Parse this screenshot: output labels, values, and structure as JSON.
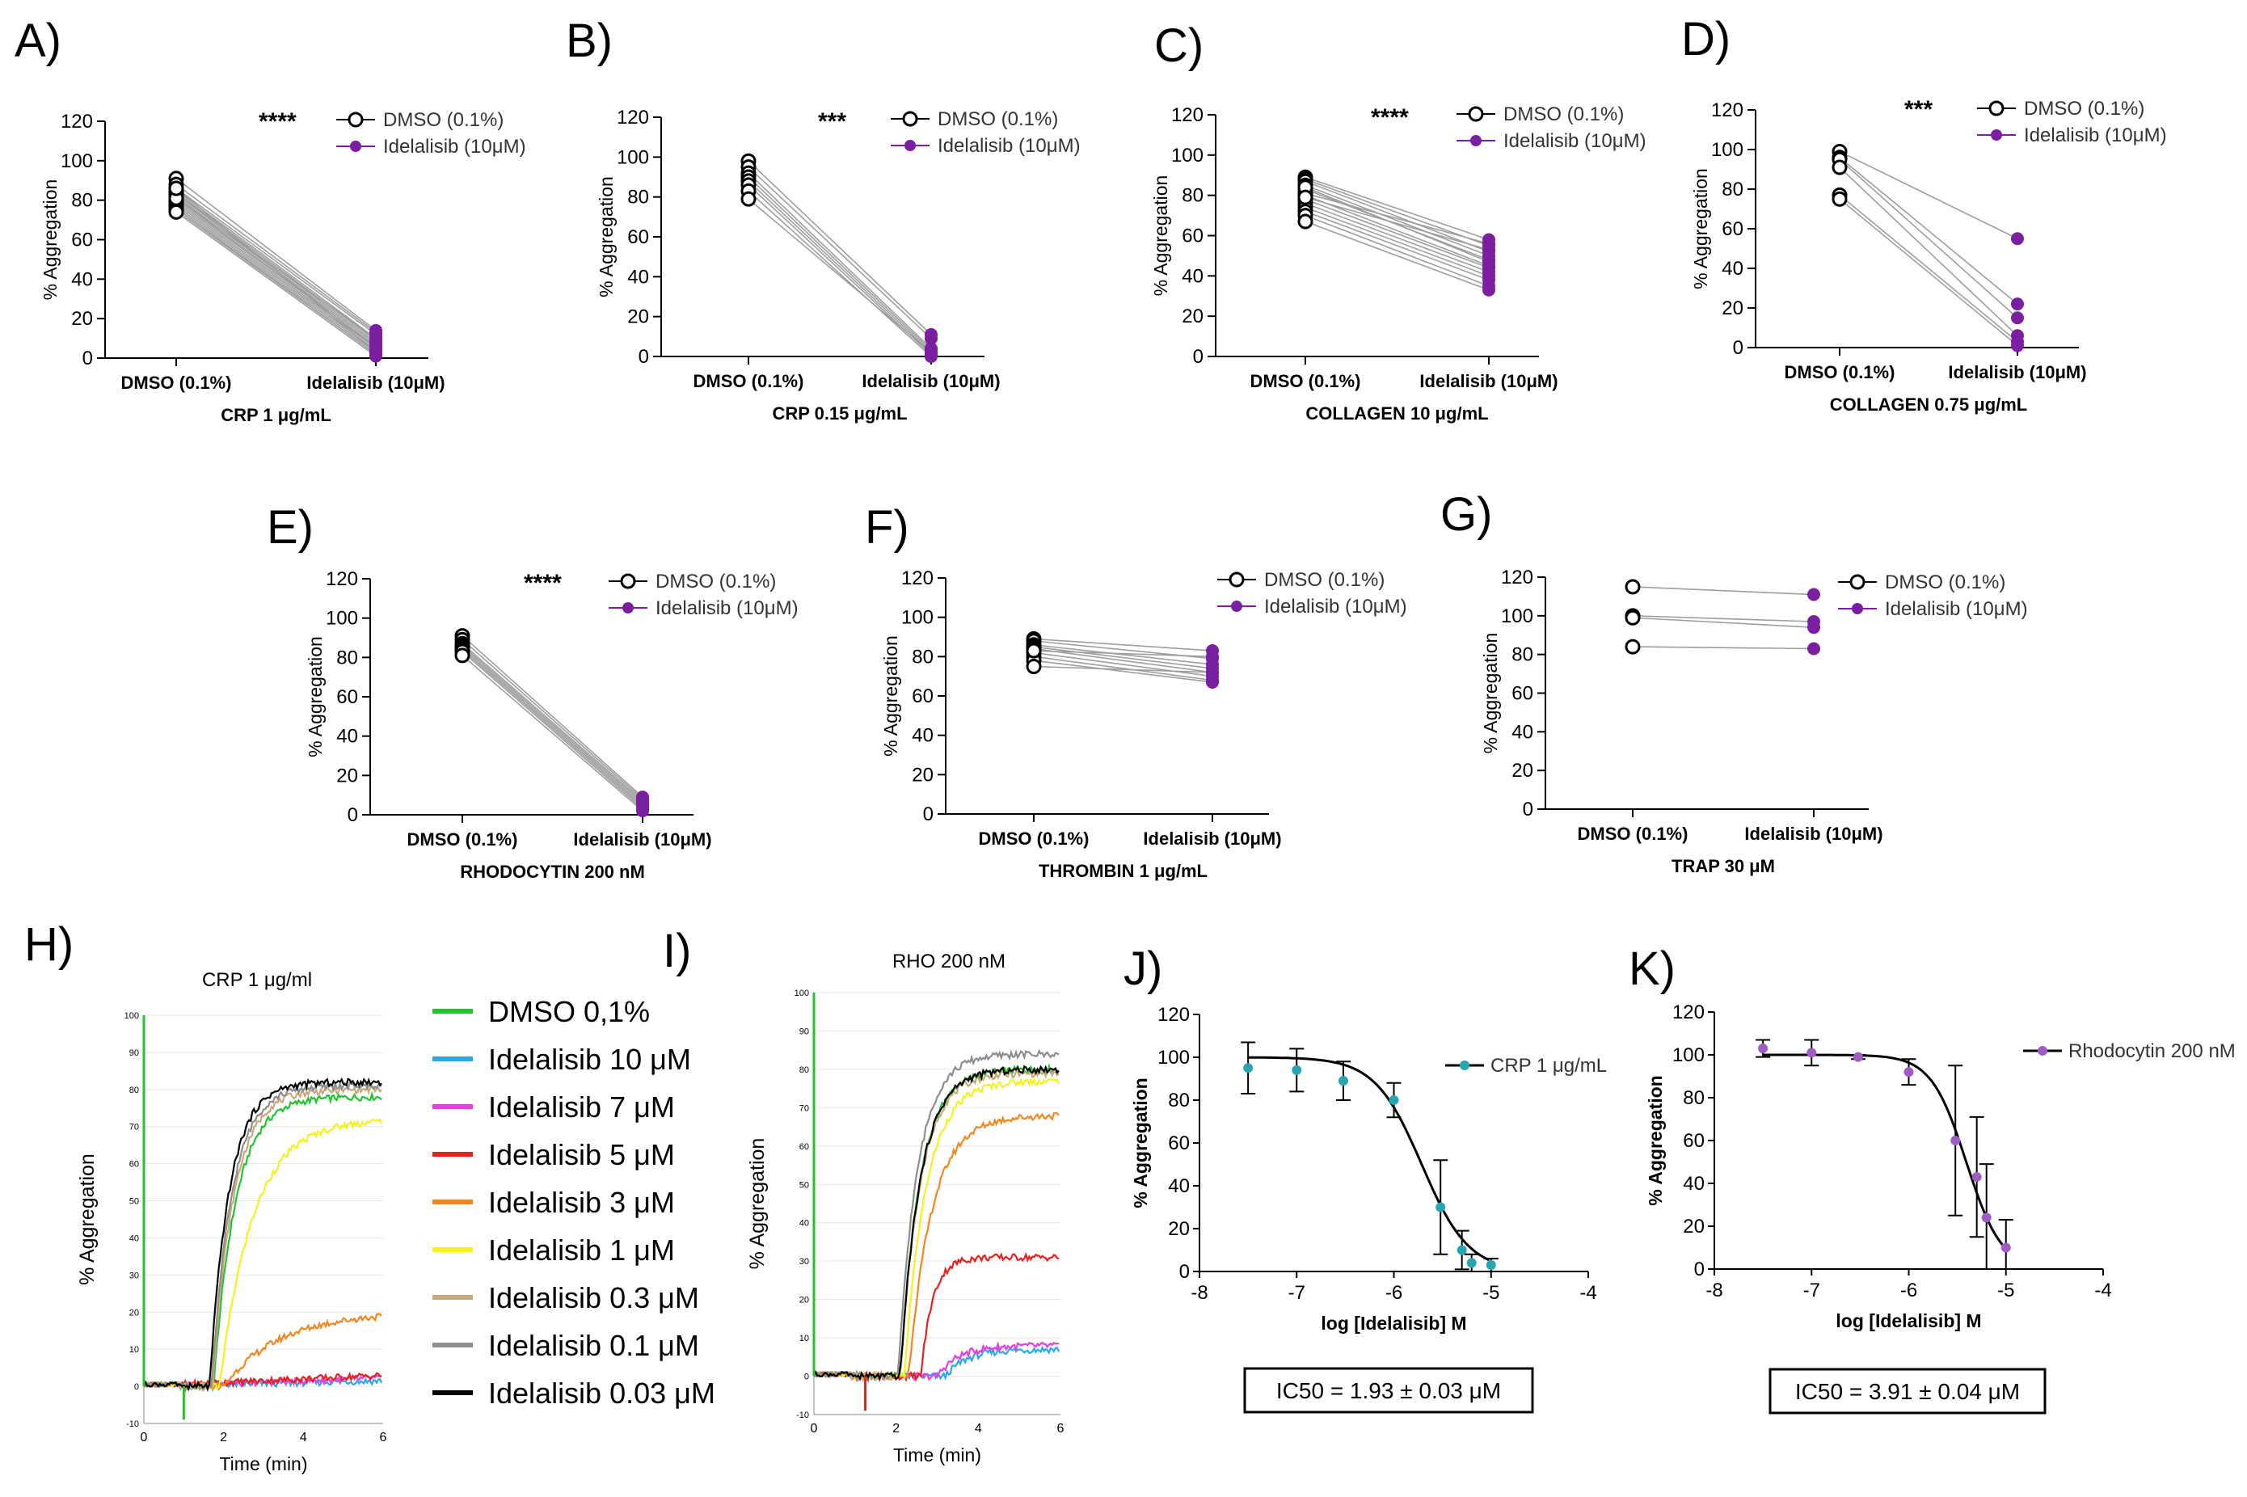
{
  "figure_labels": {
    "A": "A)",
    "B": "B)",
    "C": "C)",
    "D": "D)",
    "E": "E)",
    "F": "F)",
    "G": "G)",
    "H": "H)",
    "I": "I)",
    "J": "J)",
    "K": "K)"
  },
  "colors": {
    "dmso_marker": "#000000",
    "idelalisib_marker": "#7b1fa2",
    "pair_line": "#9e9e9e",
    "fit_marker": "#26a6b0",
    "rho_marker": "#a05cc6"
  },
  "chart_data": [
    {
      "id": "A",
      "type": "scatter",
      "title": "",
      "categories": [
        "DMSO (0.1%)",
        "Idelalisib (10μM)"
      ],
      "xlabel": "CRP 1 μg/mL",
      "ylabel": "% Aggregation",
      "ylim": [
        0,
        120
      ],
      "yticks": [
        0,
        20,
        40,
        60,
        80,
        100,
        120
      ],
      "significance": "****",
      "legend": [
        "DMSO (0.1%)",
        "Idelalisib (10μM)"
      ],
      "pairs": [
        [
          91,
          14
        ],
        [
          88,
          13
        ],
        [
          86,
          12
        ],
        [
          85,
          10
        ],
        [
          84,
          9
        ],
        [
          83,
          8
        ],
        [
          82,
          7
        ],
        [
          81,
          6
        ],
        [
          80,
          6
        ],
        [
          79,
          5
        ],
        [
          78,
          4
        ],
        [
          77,
          3
        ],
        [
          76,
          2
        ],
        [
          75,
          2
        ],
        [
          74,
          1
        ],
        [
          84,
          5
        ],
        [
          81,
          10
        ],
        [
          86,
          3
        ]
      ]
    },
    {
      "id": "B",
      "type": "scatter",
      "title": "",
      "categories": [
        "DMSO (0.1%)",
        "Idelalisib (10μM)"
      ],
      "xlabel": "CRP 0.15 μg/mL",
      "ylabel": "% Aggregation",
      "ylim": [
        0,
        120
      ],
      "yticks": [
        0,
        20,
        40,
        60,
        80,
        100,
        120
      ],
      "significance": "***",
      "legend": [
        "DMSO (0.1%)",
        "Idelalisib (10μM)"
      ],
      "pairs": [
        [
          98,
          11
        ],
        [
          95,
          9
        ],
        [
          92,
          4
        ],
        [
          90,
          3
        ],
        [
          88,
          2
        ],
        [
          86,
          1
        ],
        [
          83,
          0
        ],
        [
          79,
          2
        ]
      ]
    },
    {
      "id": "C",
      "type": "scatter",
      "title": "",
      "categories": [
        "DMSO (0.1%)",
        "Idelalisib (10μM)"
      ],
      "xlabel": "COLLAGEN 10 μg/mL",
      "ylabel": "% Aggregation",
      "ylim": [
        0,
        120
      ],
      "yticks": [
        0,
        20,
        40,
        60,
        80,
        100,
        120
      ],
      "significance": "****",
      "legend": [
        "DMSO (0.1%)",
        "Idelalisib (10μM)"
      ],
      "pairs": [
        [
          89,
          58
        ],
        [
          88,
          55
        ],
        [
          87,
          52
        ],
        [
          85,
          50
        ],
        [
          83,
          48
        ],
        [
          81,
          56
        ],
        [
          80,
          45
        ],
        [
          78,
          44
        ],
        [
          76,
          42
        ],
        [
          74,
          40
        ],
        [
          72,
          38
        ],
        [
          70,
          35
        ],
        [
          67,
          33
        ],
        [
          84,
          47
        ],
        [
          79,
          53
        ]
      ]
    },
    {
      "id": "D",
      "type": "scatter",
      "title": "",
      "categories": [
        "DMSO (0.1%)",
        "Idelalisib (10μM)"
      ],
      "xlabel": "COLLAGEN 0.75 μg/mL",
      "ylabel": "% Aggregation",
      "ylim": [
        0,
        120
      ],
      "yticks": [
        0,
        20,
        40,
        60,
        80,
        100,
        120
      ],
      "significance": "***",
      "legend": [
        "DMSO (0.1%)",
        "Idelalisib (10μM)"
      ],
      "pairs": [
        [
          99,
          55
        ],
        [
          96,
          22
        ],
        [
          95,
          15
        ],
        [
          91,
          6
        ],
        [
          77,
          3
        ],
        [
          75,
          1
        ]
      ]
    },
    {
      "id": "E",
      "type": "scatter",
      "title": "",
      "categories": [
        "DMSO (0.1%)",
        "Idelalisib (10μM)"
      ],
      "xlabel": "RHODOCYTIN 200 nM",
      "ylabel": "% Aggregation",
      "ylim": [
        0,
        120
      ],
      "yticks": [
        0,
        20,
        40,
        60,
        80,
        100,
        120
      ],
      "significance": "****",
      "legend": [
        "DMSO (0.1%)",
        "Idelalisib (10μM)"
      ],
      "pairs": [
        [
          91,
          9
        ],
        [
          89,
          8
        ],
        [
          87,
          7
        ],
        [
          86,
          6
        ],
        [
          85,
          5
        ],
        [
          84,
          4
        ],
        [
          83,
          3
        ],
        [
          81,
          2
        ]
      ]
    },
    {
      "id": "F",
      "type": "scatter",
      "title": "",
      "categories": [
        "DMSO (0.1%)",
        "Idelalisib (10μM)"
      ],
      "xlabel": "THROMBIN 1 μg/mL",
      "ylabel": "% Aggregation",
      "ylim": [
        0,
        120
      ],
      "yticks": [
        0,
        20,
        40,
        60,
        80,
        100,
        120
      ],
      "significance": "",
      "legend": [
        "DMSO (0.1%)",
        "Idelalisib (10μM)"
      ],
      "pairs": [
        [
          89,
          83
        ],
        [
          88,
          79
        ],
        [
          86,
          76
        ],
        [
          85,
          74
        ],
        [
          84,
          72
        ],
        [
          82,
          70
        ],
        [
          80,
          68
        ],
        [
          78,
          67
        ],
        [
          75,
          72
        ],
        [
          83,
          80
        ]
      ]
    },
    {
      "id": "G",
      "type": "scatter",
      "title": "",
      "categories": [
        "DMSO (0.1%)",
        "Idelalisib (10μM)"
      ],
      "xlabel": "TRAP 30 μM",
      "ylabel": "% Aggregation",
      "ylim": [
        0,
        120
      ],
      "yticks": [
        0,
        20,
        40,
        60,
        80,
        100,
        120
      ],
      "significance": "",
      "legend": [
        "DMSO (0.1%)",
        "Idelalisib (10μM)"
      ],
      "pairs": [
        [
          115,
          111
        ],
        [
          100,
          97
        ],
        [
          99,
          94
        ],
        [
          84,
          83
        ]
      ]
    },
    {
      "id": "H",
      "type": "line",
      "title": "CRP 1 μg/ml",
      "xlabel": "Time (min)",
      "ylabel": "% Aggregation",
      "xlim": [
        0,
        6
      ],
      "ylim": [
        -10,
        100
      ],
      "xticks": [
        0,
        2,
        4,
        6
      ],
      "yticks": [
        -10,
        0,
        10,
        20,
        30,
        40,
        50,
        60,
        70,
        80,
        90,
        100
      ],
      "legend_position": "right",
      "series": [
        {
          "name": "DMSO 0,1%",
          "color": "#22c32e",
          "onset": 1.75,
          "plateau": 78,
          "rate": 1.15
        },
        {
          "name": "Idelalisib 10 μM",
          "color": "#29a9e8",
          "onset": 99,
          "plateau": 0,
          "rate": 1,
          "end": 2
        },
        {
          "name": "Idelalisib 7 μM",
          "color": "#e83ce8",
          "onset": 99,
          "plateau": 0,
          "rate": 1,
          "end": 3
        },
        {
          "name": "Idelalisib 5 μM",
          "color": "#e8201e",
          "onset": 99,
          "plateau": 0,
          "rate": 1,
          "end": 4
        },
        {
          "name": "Idelalisib 3 μM",
          "color": "#f4861f",
          "onset": 2.0,
          "plateau": 20,
          "rate": 0.45
        },
        {
          "name": "Idelalisib 1 μM",
          "color": "#f4f21c",
          "onset": 1.9,
          "plateau": 72,
          "rate": 0.75
        },
        {
          "name": "Idelalisib  0.3 μM",
          "color": "#c8a97a",
          "onset": 1.72,
          "plateau": 80,
          "rate": 1.2
        },
        {
          "name": "Idelalisib 0.1 μM",
          "color": "#8d8d8d",
          "onset": 1.7,
          "plateau": 81,
          "rate": 1.25
        },
        {
          "name": "Idelalisib 0.03 μM",
          "color": "#000000",
          "onset": 1.65,
          "plateau": 82,
          "rate": 1.3
        }
      ]
    },
    {
      "id": "I",
      "type": "line",
      "title": "RHO 200 nM",
      "xlabel": "Time (min)",
      "ylabel": "% Aggregation",
      "xlim": [
        0,
        6
      ],
      "ylim": [
        -10,
        100
      ],
      "xticks": [
        0,
        2,
        4,
        6
      ],
      "yticks": [
        -10,
        0,
        10,
        20,
        30,
        40,
        50,
        60,
        70,
        80,
        90,
        100
      ],
      "series": [
        {
          "name": "DMSO 0,1%",
          "color": "#22c32e",
          "onset": 2.1,
          "plateau": 80,
          "rate": 1.3
        },
        {
          "name": "Idelalisib 10 μM",
          "color": "#29a9e8",
          "onset": 3.2,
          "plateau": 7,
          "rate": 1.2
        },
        {
          "name": "Idelalisib 7 μM",
          "color": "#e83ce8",
          "onset": 3.0,
          "plateau": 8,
          "rate": 1.2
        },
        {
          "name": "Idelalisib 5 μM",
          "color": "#e8201e",
          "onset": 2.6,
          "plateau": 31,
          "rate": 2.2
        },
        {
          "name": "Idelalisib 3 μM",
          "color": "#f4861f",
          "onset": 2.3,
          "plateau": 68,
          "rate": 1.1
        },
        {
          "name": "Idelalisib 1 μM",
          "color": "#f4f21c",
          "onset": 2.2,
          "plateau": 77,
          "rate": 1.2
        },
        {
          "name": "Idelalisib  0.3 μM",
          "color": "#c8a97a",
          "onset": 2.1,
          "plateau": 79,
          "rate": 1.3
        },
        {
          "name": "Idelalisib 0.1 μM",
          "color": "#8d8d8d",
          "onset": 2.05,
          "plateau": 84,
          "rate": 1.35
        },
        {
          "name": "Idelalisib 0.03 μM",
          "color": "#000000",
          "onset": 2.1,
          "plateau": 80,
          "rate": 1.3
        }
      ]
    },
    {
      "id": "J",
      "type": "scatter",
      "title": "",
      "xlabel": "log [Idelalisib] M",
      "ylabel": "% Aggregation",
      "xlim": [
        -8,
        -4
      ],
      "ylim": [
        0,
        120
      ],
      "xticks": [
        -8,
        -7,
        -6,
        -5,
        -4
      ],
      "yticks": [
        0,
        20,
        40,
        60,
        80,
        100,
        120
      ],
      "legend": [
        "CRP 1 μg/mL"
      ],
      "fit": {
        "top": 100,
        "bottom": 0,
        "logIC50": -5.714,
        "hill": 1.8
      },
      "points": [
        {
          "x": -7.5,
          "y": 95,
          "err": 12
        },
        {
          "x": -7.0,
          "y": 94,
          "err": 10
        },
        {
          "x": -6.52,
          "y": 89,
          "err": 9
        },
        {
          "x": -6.0,
          "y": 80,
          "err": 8
        },
        {
          "x": -5.52,
          "y": 30,
          "err": 22
        },
        {
          "x": -5.3,
          "y": 10,
          "err": 9
        },
        {
          "x": -5.2,
          "y": 4,
          "err": 4
        },
        {
          "x": -5.0,
          "y": 3,
          "err": 3
        }
      ],
      "ic50_text": "IC50 = 1.93 ± 0.03 μM"
    },
    {
      "id": "K",
      "type": "scatter",
      "title": "",
      "xlabel": "log [Idelalisib] M",
      "ylabel": "% Aggregation",
      "xlim": [
        -8,
        -4
      ],
      "ylim": [
        0,
        120
      ],
      "xticks": [
        -8,
        -7,
        -6,
        -5,
        -4
      ],
      "yticks": [
        0,
        20,
        40,
        60,
        80,
        100,
        120
      ],
      "legend": [
        "Rhodocytin 200 nM"
      ],
      "fit": {
        "top": 100,
        "bottom": 0,
        "logIC50": -5.408,
        "hill": 2.4
      },
      "points": [
        {
          "x": -7.5,
          "y": 103,
          "err": 4
        },
        {
          "x": -7.0,
          "y": 101,
          "err": 6
        },
        {
          "x": -6.52,
          "y": 99,
          "err": 1
        },
        {
          "x": -6.0,
          "y": 92,
          "err": 6
        },
        {
          "x": -5.52,
          "y": 60,
          "err": 35
        },
        {
          "x": -5.3,
          "y": 43,
          "err": 28
        },
        {
          "x": -5.2,
          "y": 24,
          "err": 25
        },
        {
          "x": -5.0,
          "y": 10,
          "err": 13
        }
      ],
      "ic50_text": "IC50 = 3.91 ± 0.04 μM"
    }
  ]
}
